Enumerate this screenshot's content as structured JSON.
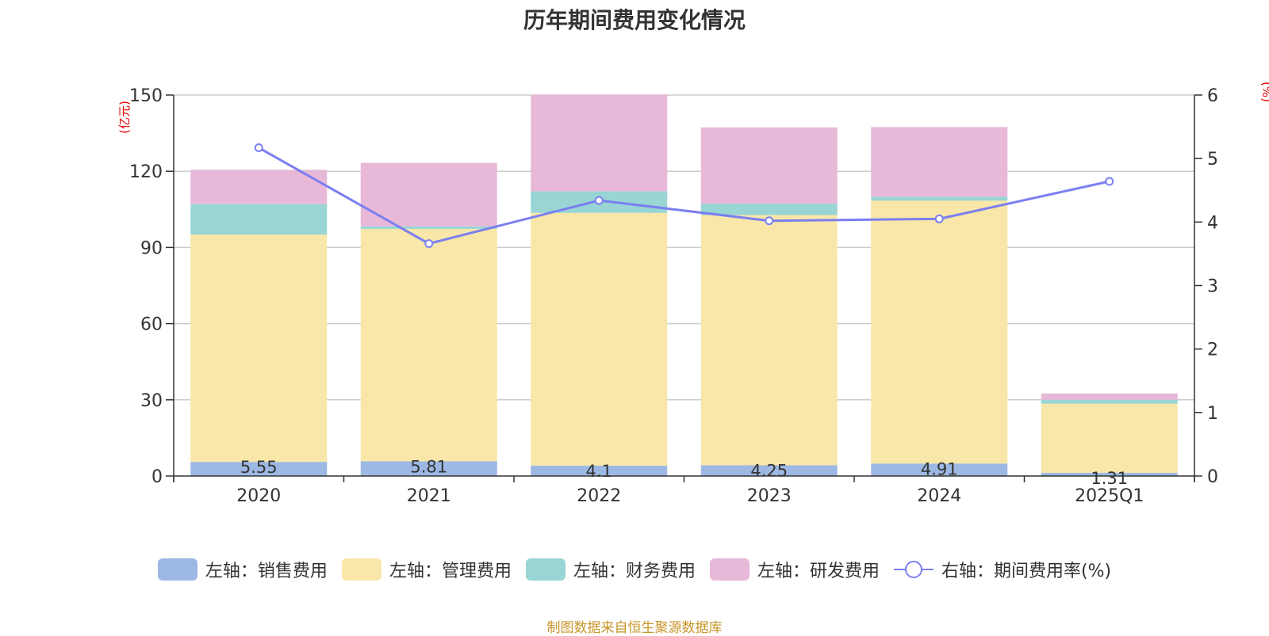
{
  "chart_data": {
    "type": "bar",
    "title": "历年期间费用变化情况",
    "categories": [
      "2020",
      "2021",
      "2022",
      "2023",
      "2024",
      "2025Q1"
    ],
    "left_axis": {
      "unit": "(亿元)",
      "ylim": [
        0,
        150
      ],
      "ticks": [
        "0",
        "30",
        "60",
        "90",
        "120",
        "150"
      ]
    },
    "right_axis": {
      "unit": "(%)",
      "ylim": [
        0,
        6
      ],
      "ticks": [
        "0",
        "1",
        "2",
        "3",
        "4",
        "5",
        "6"
      ]
    },
    "series": [
      {
        "name": "左轴：销售费用",
        "color": "#9db8e3",
        "values": [
          5.55,
          5.81,
          4.1,
          4.25,
          4.91,
          1.31
        ],
        "labels": [
          "5.55",
          "5.81",
          "4.1",
          "4.25",
          "4.91",
          "1.31"
        ]
      },
      {
        "name": "左轴：管理费用",
        "color": "#f8e7a8",
        "values": [
          89.5,
          91.5,
          99.5,
          98.5,
          103.5,
          27.2
        ]
      },
      {
        "name": "左轴：财务费用",
        "color": "#98d5d4",
        "values": [
          12.0,
          1.0,
          8.5,
          4.5,
          1.5,
          1.5
        ]
      },
      {
        "name": "左轴：研发费用",
        "color": "#e8b8d9",
        "values": [
          13.5,
          25.0,
          38.0,
          30.0,
          27.5,
          2.5
        ]
      },
      {
        "name": "右轴：期间费用率(%)",
        "color": "#7b7ff0",
        "axis": "right",
        "type": "line",
        "values": [
          5.17,
          3.66,
          4.34,
          4.02,
          4.05,
          4.64
        ]
      }
    ],
    "grid": true,
    "legend_position": "bottom"
  },
  "source": "制图数据来自恒生聚源数据库"
}
